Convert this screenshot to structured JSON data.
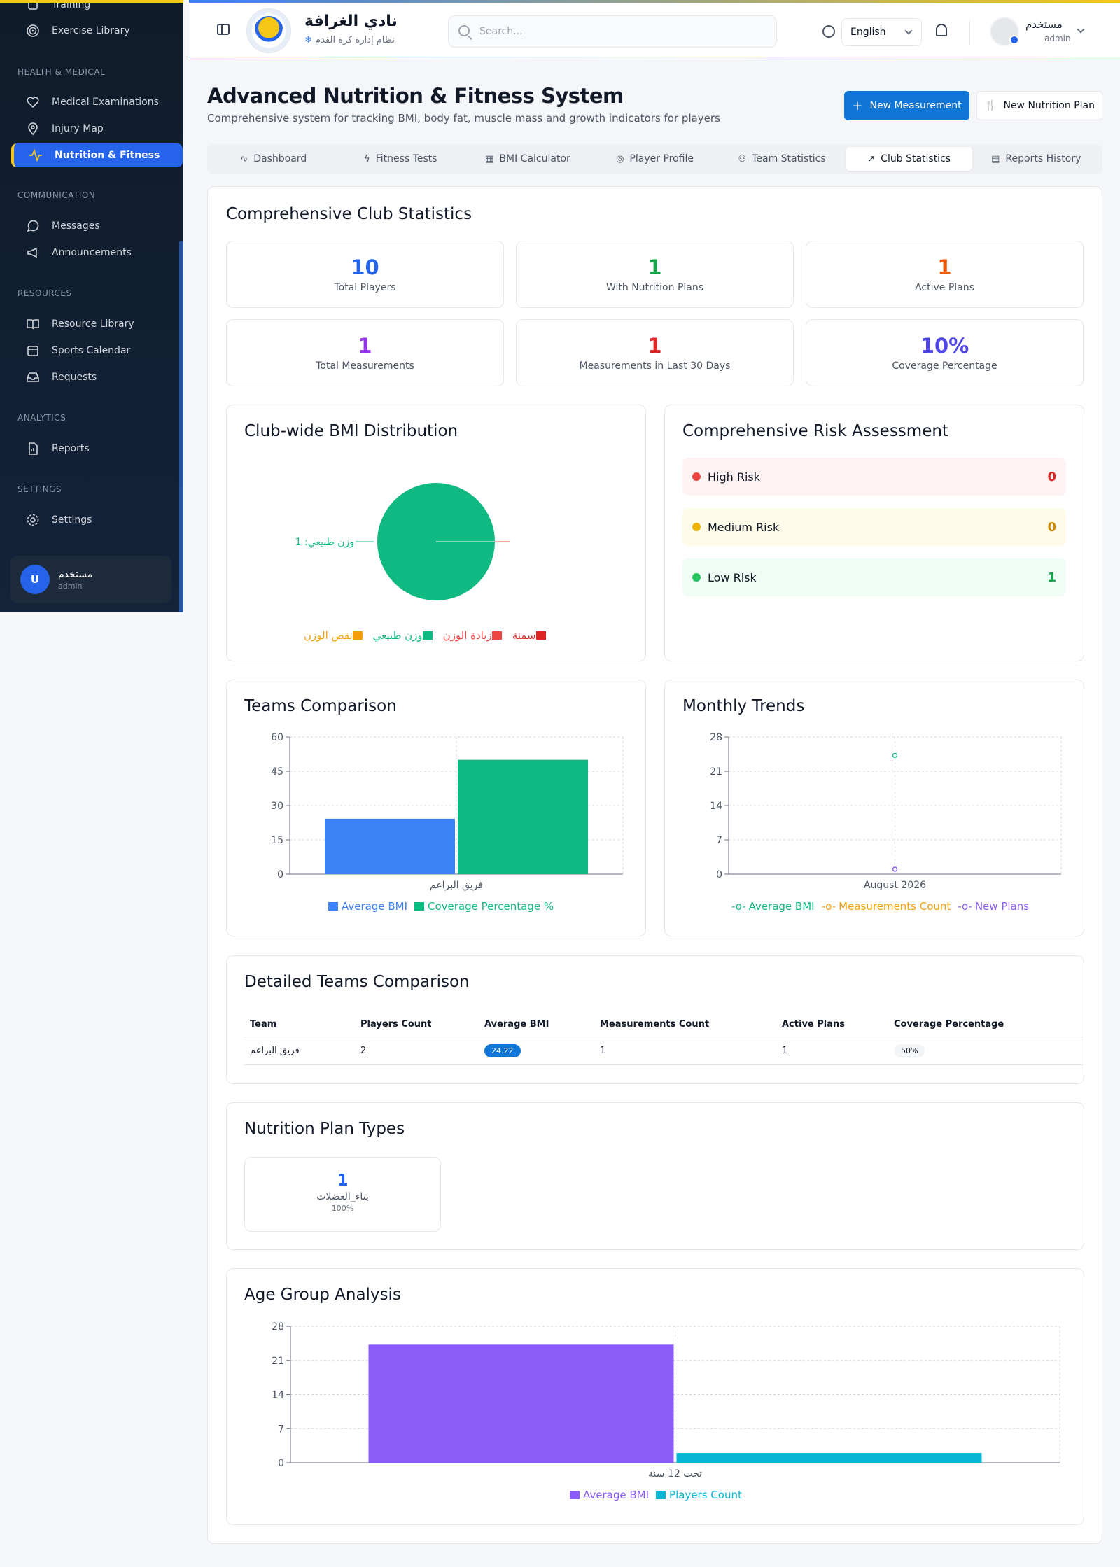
{
  "sidebar": {
    "top_partial": "Training",
    "items_top": [
      {
        "label": "Exercise Library",
        "icon": "target-icon"
      }
    ],
    "sections": [
      {
        "title": "HEALTH & MEDICAL",
        "items": [
          {
            "label": "Medical Examinations",
            "icon": "heart-icon"
          },
          {
            "label": "Injury Map",
            "icon": "map-pin-icon"
          },
          {
            "label": "Nutrition & Fitness",
            "icon": "activity-icon",
            "active": true
          }
        ]
      },
      {
        "title": "COMMUNICATION",
        "items": [
          {
            "label": "Messages",
            "icon": "message-icon"
          },
          {
            "label": "Announcements",
            "icon": "megaphone-icon"
          }
        ]
      },
      {
        "title": "RESOURCES",
        "items": [
          {
            "label": "Resource Library",
            "icon": "book-icon"
          },
          {
            "label": "Sports Calendar",
            "icon": "calendar-icon"
          },
          {
            "label": "Requests",
            "icon": "inbox-icon"
          }
        ]
      },
      {
        "title": "ANALYTICS",
        "items": [
          {
            "label": "Reports",
            "icon": "file-chart-icon"
          }
        ]
      },
      {
        "title": "SETTINGS",
        "items": [
          {
            "label": "Settings",
            "icon": "gear-icon"
          }
        ]
      }
    ],
    "user": {
      "initial": "U",
      "name": "مستخدم",
      "role": "admin"
    }
  },
  "header": {
    "club_name": "نادي الغرافة",
    "club_subtitle": "نظام إدارة كرة القدم",
    "search_placeholder": "Search...",
    "language": "English",
    "user_name": "مستخدم",
    "user_role": "admin"
  },
  "page": {
    "title": "Advanced Nutrition & Fitness System",
    "subtitle": "Comprehensive system for tracking BMI, body fat, muscle mass and growth indicators for players",
    "new_measurement": "New Measurement",
    "new_nutrition_plan": "New Nutrition Plan"
  },
  "tabs": [
    {
      "label": "Dashboard",
      "icon": "activity-icon"
    },
    {
      "label": "Fitness Tests",
      "icon": "zap-icon"
    },
    {
      "label": "BMI Calculator",
      "icon": "calculator-icon"
    },
    {
      "label": "Player Profile",
      "icon": "target-icon"
    },
    {
      "label": "Team Statistics",
      "icon": "users-icon"
    },
    {
      "label": "Club Statistics",
      "icon": "trending-up-icon",
      "active": true
    },
    {
      "label": "Reports History",
      "icon": "file-icon"
    }
  ],
  "club_stats": {
    "title": "Comprehensive Club Statistics",
    "cards": [
      {
        "value": "10",
        "label": "Total Players",
        "color": "#2563eb"
      },
      {
        "value": "1",
        "label": "With Nutrition Plans",
        "color": "#16a34a"
      },
      {
        "value": "1",
        "label": "Active Plans",
        "color": "#ea580c"
      },
      {
        "value": "1",
        "label": "Total Measurements",
        "color": "#9333ea"
      },
      {
        "value": "1",
        "label": "Measurements in Last 30 Days",
        "color": "#dc2626"
      },
      {
        "value": "10%",
        "label": "Coverage Percentage",
        "color": "#4f46e5"
      }
    ]
  },
  "bmi_distribution": {
    "title": "Club-wide BMI Distribution",
    "slice_label": "وزن طبيعي: 1",
    "legend": [
      {
        "label": "نقص الوزن",
        "color": "#f59e0b"
      },
      {
        "label": "وزن طبيعي",
        "color": "#10b981"
      },
      {
        "label": "زيادة الوزن",
        "color": "#ef4444"
      },
      {
        "label": "سمنة",
        "color": "#dc2626"
      }
    ]
  },
  "risk": {
    "title": "Comprehensive Risk Assessment",
    "items": [
      {
        "label": "High Risk",
        "value": "0",
        "color": "#ef4444",
        "bg": "#fef2f2",
        "numcolor": "#dc2626"
      },
      {
        "label": "Medium Risk",
        "value": "0",
        "color": "#eab308",
        "bg": "#fefce8",
        "numcolor": "#ca8a04"
      },
      {
        "label": "Low Risk",
        "value": "1",
        "color": "#22c55e",
        "bg": "#f0fdf4",
        "numcolor": "#16a34a"
      }
    ]
  },
  "teams_comparison": {
    "title": "Teams Comparison",
    "legend": [
      {
        "label": "Average BMI",
        "color": "#3b82f6"
      },
      {
        "label": "Coverage Percentage %",
        "color": "#10b981"
      }
    ]
  },
  "monthly_trends": {
    "title": "Monthly Trends",
    "legend": [
      {
        "label": "Average BMI",
        "color": "#10b981"
      },
      {
        "label": "Measurements Count",
        "color": "#f59e0b"
      },
      {
        "label": "New Plans",
        "color": "#8b5cf6"
      }
    ]
  },
  "detailed": {
    "title": "Detailed Teams Comparison",
    "headers": [
      "Team",
      "Players Count",
      "Average BMI",
      "Measurements Count",
      "Active Plans",
      "Coverage Percentage"
    ],
    "rows": [
      [
        "فريق البراعم",
        "2",
        "24.22",
        "1",
        "1",
        "50%"
      ]
    ]
  },
  "plan_types": {
    "title": "Nutrition Plan Types",
    "items": [
      {
        "value": "1",
        "label": "بناء_العضلات",
        "percent": "100%"
      }
    ]
  },
  "age_groups": {
    "title": "Age Group Analysis",
    "legend": [
      {
        "label": "Average BMI",
        "color": "#8b5cf6"
      },
      {
        "label": "Players Count",
        "color": "#06b6d4"
      }
    ]
  },
  "chart_data": [
    {
      "type": "pie",
      "title": "Club-wide BMI Distribution",
      "labels": [
        "نقص الوزن",
        "وزن طبيعي",
        "زيادة الوزن",
        "سمنة"
      ],
      "values": [
        0,
        1,
        0,
        0
      ]
    },
    {
      "type": "bar",
      "title": "Teams Comparison",
      "categories": [
        "فريق البراعم"
      ],
      "series": [
        {
          "name": "Average BMI",
          "values": [
            24.22
          ]
        },
        {
          "name": "Coverage Percentage %",
          "values": [
            50
          ]
        }
      ],
      "ylim": [
        0,
        60
      ],
      "yticks": [
        0,
        15,
        30,
        45,
        60
      ]
    },
    {
      "type": "line",
      "title": "Monthly Trends",
      "categories": [
        "August 2026"
      ],
      "series": [
        {
          "name": "Average BMI",
          "values": [
            24.22
          ]
        },
        {
          "name": "Measurements Count",
          "values": [
            1
          ]
        },
        {
          "name": "New Plans",
          "values": [
            1
          ]
        }
      ],
      "ylim": [
        0,
        28
      ],
      "yticks": [
        0,
        7,
        14,
        21,
        28
      ]
    },
    {
      "type": "bar",
      "title": "Age Group Analysis",
      "categories": [
        "تحت 12 سنة"
      ],
      "series": [
        {
          "name": "Average BMI",
          "values": [
            24.22
          ]
        },
        {
          "name": "Players Count",
          "values": [
            2
          ]
        }
      ],
      "ylim": [
        0,
        28
      ],
      "yticks": [
        0,
        7,
        14,
        21,
        28
      ]
    }
  ]
}
